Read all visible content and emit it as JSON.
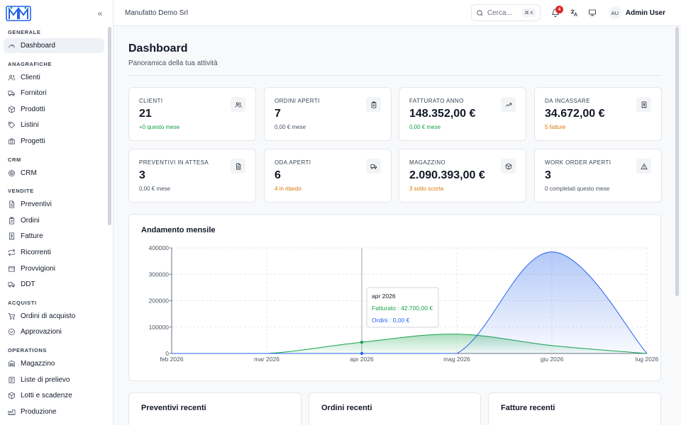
{
  "app": {
    "company": "Manufatto Demo Srl",
    "search_placeholder": "Cerca...",
    "search_shortcut": "⌘ K",
    "notification_count": "4",
    "user_initials": "AU",
    "user_name": "Admin User"
  },
  "sidebar": {
    "sections": [
      {
        "title": "GENERALE",
        "items": [
          {
            "label": "Dashboard",
            "icon": "gauge-icon",
            "active": true
          }
        ]
      },
      {
        "title": "ANAGRAFICHE",
        "items": [
          {
            "label": "Clienti",
            "icon": "users-icon"
          },
          {
            "label": "Fornitori",
            "icon": "truck-icon"
          },
          {
            "label": "Prodotti",
            "icon": "package-icon"
          },
          {
            "label": "Listini",
            "icon": "tag-icon"
          },
          {
            "label": "Progetti",
            "icon": "briefcase-icon"
          }
        ]
      },
      {
        "title": "CRM",
        "items": [
          {
            "label": "CRM",
            "icon": "target-icon"
          }
        ]
      },
      {
        "title": "VENDITE",
        "items": [
          {
            "label": "Preventivi",
            "icon": "file-text-icon"
          },
          {
            "label": "Ordini",
            "icon": "clipboard-icon"
          },
          {
            "label": "Fatture",
            "icon": "receipt-icon"
          },
          {
            "label": "Ricorrenti",
            "icon": "repeat-icon"
          },
          {
            "label": "Provvigioni",
            "icon": "wallet-icon"
          },
          {
            "label": "DDT",
            "icon": "truck-icon"
          }
        ]
      },
      {
        "title": "ACQUISTI",
        "items": [
          {
            "label": "Ordini di acquisto",
            "icon": "cart-icon"
          },
          {
            "label": "Approvazioni",
            "icon": "check-circle-icon"
          }
        ]
      },
      {
        "title": "OPERATIONS",
        "items": [
          {
            "label": "Magazzino",
            "icon": "warehouse-icon"
          },
          {
            "label": "Liste di prelievo",
            "icon": "list-icon"
          },
          {
            "label": "Lotti e scadenze",
            "icon": "package-icon"
          },
          {
            "label": "Produzione",
            "icon": "factory-icon"
          }
        ]
      }
    ]
  },
  "page": {
    "title": "Dashboard",
    "subtitle": "Panoramica della tua attività"
  },
  "kpis": [
    {
      "label": "CLIENTI",
      "value": "21",
      "sub": "+0 questo mese",
      "tone": "green",
      "icon": "users-icon"
    },
    {
      "label": "ORDINI APERTI",
      "value": "7",
      "sub": "0,00 € mese",
      "tone": "gray",
      "icon": "clipboard-icon"
    },
    {
      "label": "FATTURATO ANNO",
      "value": "148.352,00 €",
      "sub": "0,00 € mese",
      "tone": "green",
      "icon": "trending-up-icon"
    },
    {
      "label": "DA INCASSARE",
      "value": "34.672,00 €",
      "sub": "5 fatture",
      "tone": "amber",
      "icon": "receipt-icon"
    },
    {
      "label": "PREVENTIVI IN ATTESA",
      "value": "3",
      "sub": "0,00 € mese",
      "tone": "gray",
      "icon": "file-text-icon"
    },
    {
      "label": "ODA APERTI",
      "value": "6",
      "sub": "4 in ritardo",
      "tone": "amber",
      "icon": "truck-icon"
    },
    {
      "label": "MAGAZZINO",
      "value": "2.090.393,00 €",
      "sub": "3 sotto scorta",
      "tone": "amber",
      "icon": "package-icon"
    },
    {
      "label": "WORK ORDER APERTI",
      "value": "3",
      "sub": "0 completati questo mese",
      "tone": "gray",
      "icon": "alert-triangle-icon"
    }
  ],
  "chart_data": {
    "type": "area",
    "title": "Andamento mensile",
    "x": [
      "feb 2026",
      "mar 2026",
      "apr 2026",
      "mag 2026",
      "giu 2026",
      "lug 2026"
    ],
    "ylim": [
      0,
      400000
    ],
    "yticks": [
      "0",
      "100000",
      "200000",
      "300000",
      "400000"
    ],
    "grid": true,
    "series": [
      {
        "name": "Fatturato",
        "color": "#16a34a",
        "values": [
          0,
          0,
          42700,
          73000,
          30000,
          0
        ]
      },
      {
        "name": "Ordini",
        "color": "#2563eb",
        "values": [
          0,
          0,
          0,
          0,
          385000,
          0
        ]
      }
    ],
    "tooltip": {
      "title": "apr 2026",
      "lines": [
        "Fatturato : 42.700,00 €",
        "Ordini : 0,00 €"
      ]
    }
  },
  "recent": [
    {
      "title": "Preventivi recenti"
    },
    {
      "title": "Ordini recenti"
    },
    {
      "title": "Fatture recenti"
    }
  ]
}
